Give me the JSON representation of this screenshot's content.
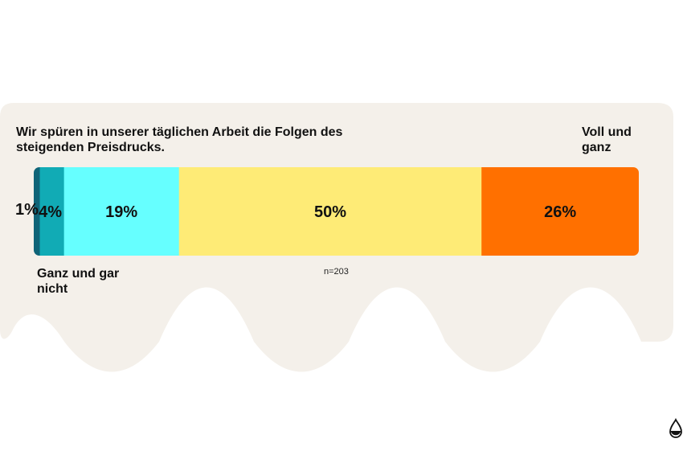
{
  "chart_data": {
    "type": "bar",
    "orientation": "horizontal-stacked",
    "title": "Wir spüren in unserer täglichen Arbeit die Folgen des steigenden Preisdrucks.",
    "scale_start_label": "Ganz und gar nicht",
    "scale_end_label": "Voll und ganz",
    "sample_note": "n=203",
    "segments": [
      {
        "value": 1,
        "label": "1%",
        "color": "#0f6478"
      },
      {
        "value": 4,
        "label": "4%",
        "color": "#11abb5"
      },
      {
        "value": 19,
        "label": "19%",
        "color": "#66ffff"
      },
      {
        "value": 50,
        "label": "50%",
        "color": "#feeb76"
      },
      {
        "value": 26,
        "label": "26%",
        "color": "#ff7000"
      }
    ]
  },
  "colors": {
    "card_background": "#f4f0ea"
  },
  "logo_icon": "drop-logo-icon"
}
